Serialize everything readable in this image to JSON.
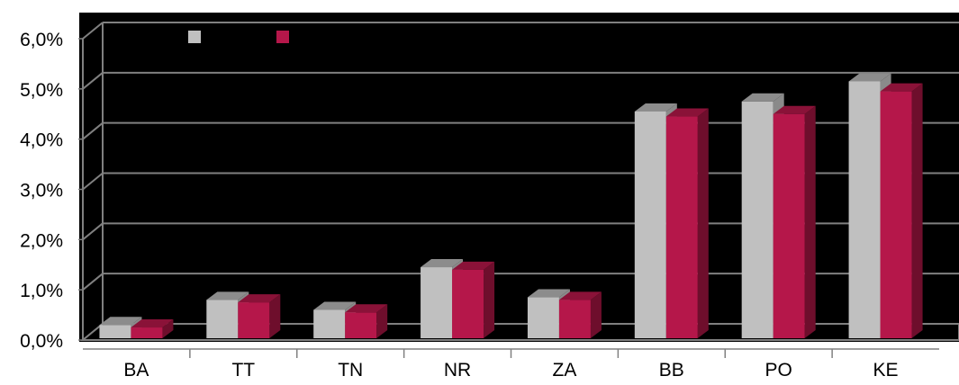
{
  "chart_data": {
    "type": "bar",
    "style": "3d-clustered-column",
    "categories": [
      "BA",
      "TT",
      "TN",
      "NR",
      "ZA",
      "BB",
      "PO",
      "KE"
    ],
    "series": [
      {
        "values": [
          0.3,
          0.8,
          0.6,
          1.45,
          0.85,
          4.55,
          4.75,
          5.15
        ]
      },
      {
        "values": [
          0.25,
          0.75,
          0.55,
          1.4,
          0.8,
          4.45,
          4.5,
          4.95
        ]
      }
    ],
    "y_ticks": [
      "0,0%",
      "1,0%",
      "2,0%",
      "3,0%",
      "4,0%",
      "5,0%",
      "6,0%"
    ],
    "ylim": [
      0,
      6
    ],
    "grid": true,
    "legend_position": "top-left",
    "colors": {
      "plot_background": "#000000",
      "gridline": "#808080",
      "series_front": [
        "#c0c0c0",
        "#b5174a"
      ],
      "series_top": [
        "#8c8c8c",
        "#8a1238"
      ],
      "series_side": [
        "#8a8a8a",
        "#6e0e2c"
      ]
    }
  }
}
